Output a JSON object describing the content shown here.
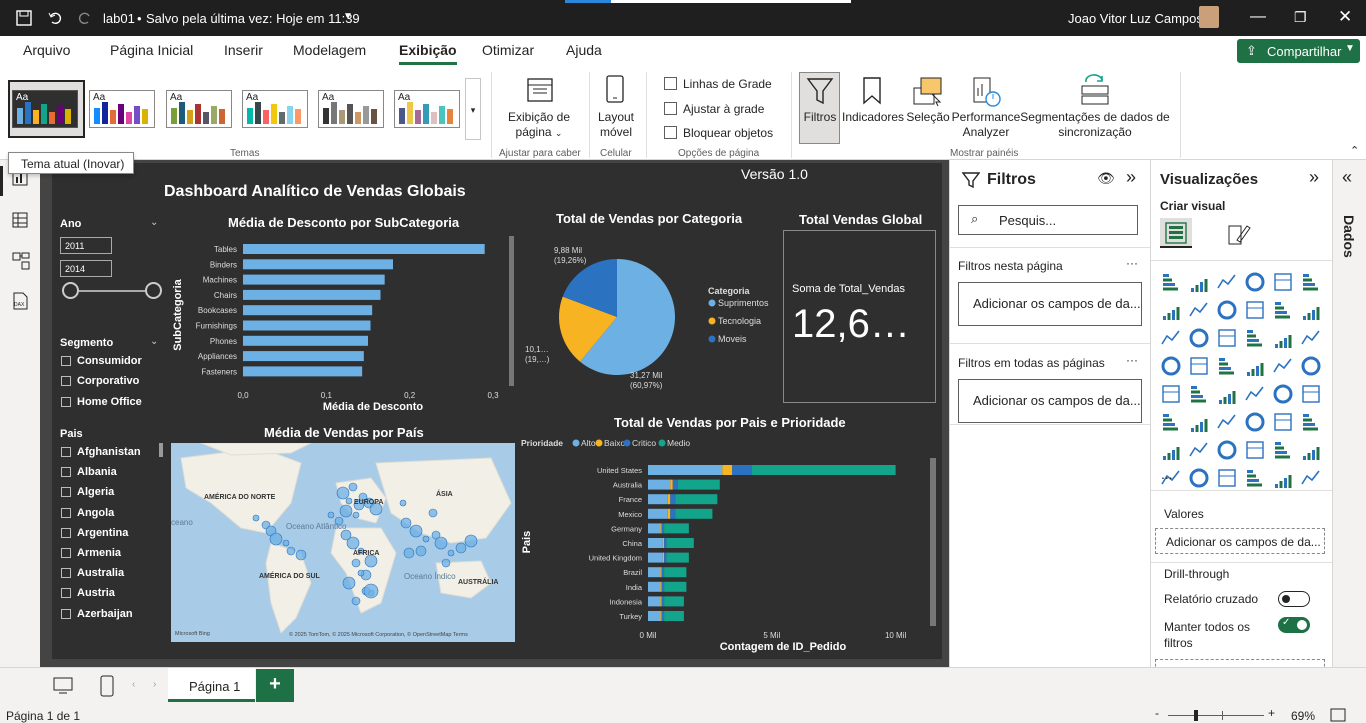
{
  "titlebar": {
    "file_name": "lab01",
    "save_status": "Salvo pela última vez: Hoje em 11:39",
    "user_name": "Joao Vitor Luz Campos"
  },
  "menu": {
    "tabs": [
      "Arquivo",
      "Página Inicial",
      "Inserir",
      "Modelagem",
      "Exibição",
      "Otimizar",
      "Ajuda"
    ],
    "active": "Exibição",
    "share_label": "Compartilhar"
  },
  "ribbon": {
    "themes_label": "Temas",
    "tooltip": "Tema atual (Inovar)",
    "page_view_label": "Exibição de página",
    "fit_label": "Ajustar para caber",
    "mobile_label": "Layout móvel",
    "mobile_group": "Celular",
    "gridlines": "Linhas de Grade",
    "snap": "Ajustar à grade",
    "lock": "Bloquear objetos",
    "page_options": "Opções de página",
    "filters_btn": "Filtros",
    "bookmarks_btn": "Indicadores",
    "selection_btn": "Seleção",
    "perf_btn": "Performance Analyzer",
    "sync_btn": "Segmentações de dados de sincronização",
    "show_panes": "Mostrar painéis"
  },
  "report": {
    "title": "Dashboard Analítico de Vendas Globais",
    "version": "Versão 1.0",
    "ano_label": "Ano",
    "ano_from": "2011",
    "ano_to": "2014",
    "segmento_label": "Segmento",
    "segmentos": [
      "Consumidor",
      "Corporativo",
      "Home Office"
    ],
    "pais_label": "Pais",
    "paises": [
      "Afghanistan",
      "Albania",
      "Algeria",
      "Angola",
      "Argentina",
      "Armenia",
      "Australia",
      "Austria",
      "Azerbaijan"
    ],
    "card_title": "Total Vendas Global",
    "card_label": "Soma de Total_Vendas",
    "card_value": "12,6…",
    "map_title": "Média de Vendas por País",
    "map_labels": [
      "AMÉRICA DO NORTE",
      "EUROPA",
      "ÁSIA",
      "Oceano Atlântico",
      "ÁFRICA",
      "AMÉRICA DO SUL",
      "Oceano Índico",
      "AUSTRÁLIA",
      "ceano"
    ],
    "map_credit": "© 2025 TomTom, © 2025 Microsoft Corporation, © OpenStreetMap  Terms",
    "map_brand": "Microsoft Bing"
  },
  "chart_data": [
    {
      "type": "bar",
      "title": "Média de Desconto por SubCategoria",
      "ylabel": "SubCategoria",
      "xlabel": "Média de Desconto",
      "categories": [
        "Tables",
        "Binders",
        "Machines",
        "Chairs",
        "Bookcases",
        "Furnishings",
        "Phones",
        "Appliances",
        "Fasteners"
      ],
      "values": [
        0.29,
        0.18,
        0.17,
        0.165,
        0.155,
        0.153,
        0.15,
        0.145,
        0.143
      ],
      "xticks": [
        "0,0",
        "0,1",
        "0,2",
        "0,3"
      ],
      "xlim": [
        0,
        0.3
      ]
    },
    {
      "type": "pie",
      "title": "Total de Vendas por Categoria",
      "legend_title": "Categoria",
      "categories": [
        "Suprimentos",
        "Tecnologia",
        "Moveis"
      ],
      "values": [
        31.27,
        10.1,
        9.88
      ],
      "labels": [
        "31,27 Mil (60,97%)",
        "10,1… (19,…)",
        "9,88 Mil (19,26%)"
      ],
      "colors": [
        "#6cb0e4",
        "#f8b323",
        "#2b72c0"
      ]
    },
    {
      "type": "bar",
      "title": "Total de Vendas por Pais e Prioridade",
      "ylabel": "Pais",
      "xlabel": "Contagem de ID_Pedido",
      "legend_title": "Prioridade",
      "series": [
        {
          "name": "Alto",
          "color": "#6cb0e4"
        },
        {
          "name": "Baixo",
          "color": "#f8b323"
        },
        {
          "name": "Critico",
          "color": "#2b72c0"
        },
        {
          "name": "Medio",
          "color": "#12a58c"
        }
      ],
      "categories": [
        "United States",
        "Australia",
        "France",
        "Mexico",
        "Germany",
        "China",
        "United Kingdom",
        "Brazil",
        "India",
        "Indonesia",
        "Turkey"
      ],
      "stacks": [
        [
          3.0,
          0.4,
          0.8,
          5.8
        ],
        [
          0.9,
          0.1,
          0.2,
          1.7
        ],
        [
          0.8,
          0.1,
          0.2,
          1.7
        ],
        [
          0.8,
          0.1,
          0.2,
          1.5
        ],
        [
          0.5,
          0.05,
          0.1,
          1.0
        ],
        [
          0.6,
          0.05,
          0.1,
          1.1
        ],
        [
          0.6,
          0.05,
          0.1,
          0.9
        ],
        [
          0.5,
          0.05,
          0.1,
          0.9
        ],
        [
          0.5,
          0.05,
          0.1,
          0.9
        ],
        [
          0.5,
          0.05,
          0.1,
          0.8
        ],
        [
          0.5,
          0.05,
          0.1,
          0.8
        ]
      ],
      "xticks": [
        "0 Mil",
        "5 Mil",
        "10 Mil"
      ],
      "xlim": [
        0,
        10.5
      ]
    }
  ],
  "filters": {
    "title": "Filtros",
    "search": "Pesquis...",
    "this_page": "Filtros nesta página",
    "add_fields": "Adicionar os campos de da...",
    "all_pages": "Filtros em todas as páginas",
    "add_fields2": "Adicionar os campos de da..."
  },
  "viz": {
    "title": "Visualizações",
    "build": "Criar visual",
    "values": "Valores",
    "add_values": "Adicionar os campos de da...",
    "drill": "Drill-through",
    "cross": "Relatório cruzado",
    "keep": "Manter todos os filtros",
    "add_drill": "Adicionar os campos de dr...",
    "more": "..."
  },
  "dados": "Dados",
  "pages": {
    "tab": "Página 1",
    "add": "+"
  },
  "status": {
    "page": "Página 1 de 1",
    "zoom": "69%",
    "minus": "-",
    "plus": "+"
  }
}
